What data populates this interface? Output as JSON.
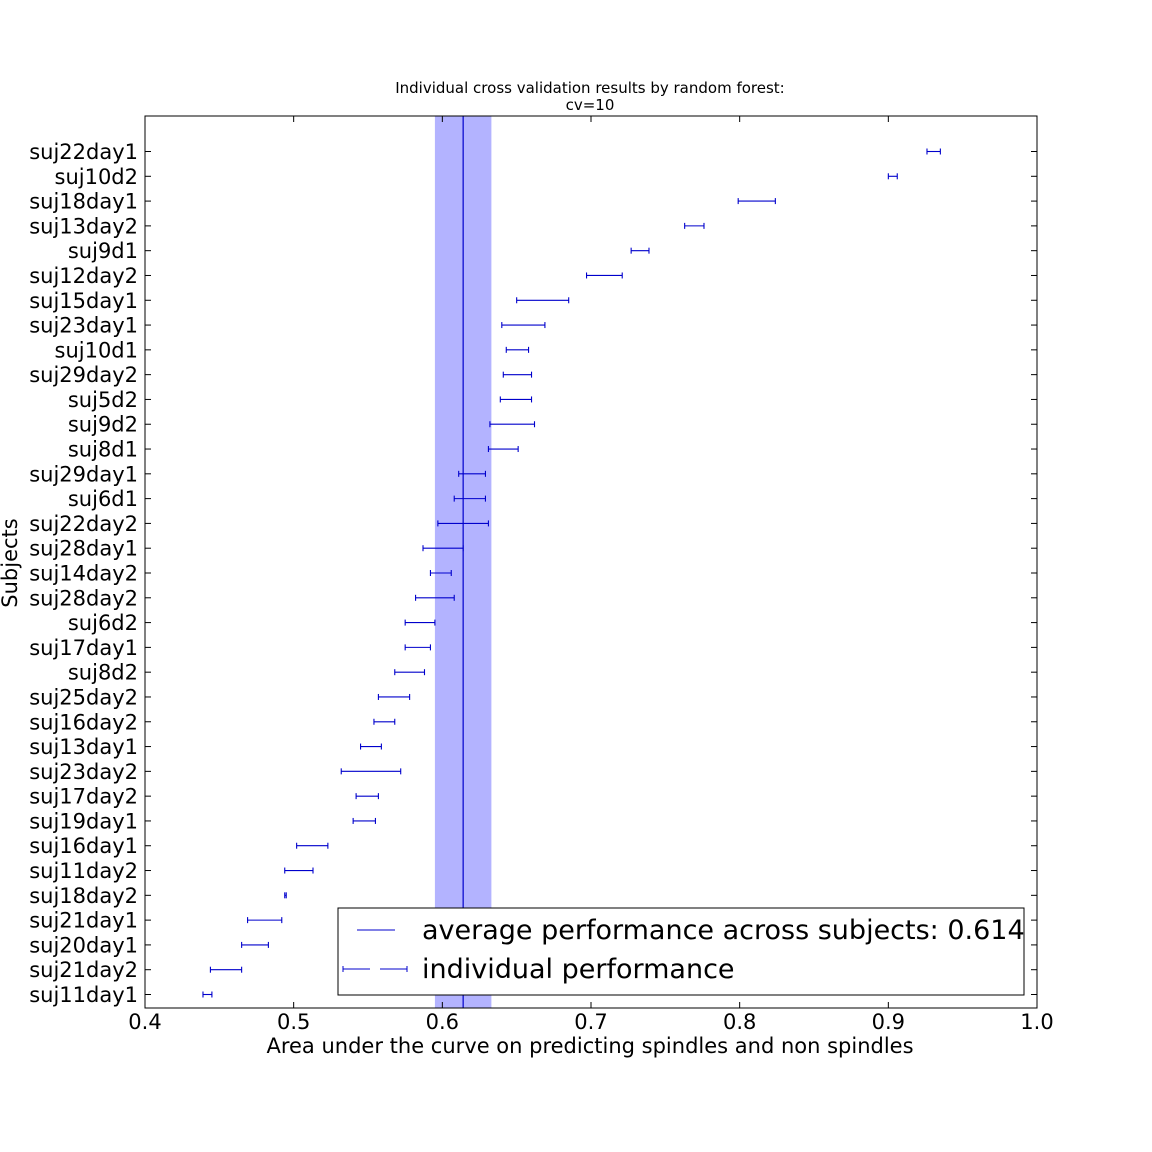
{
  "chart_data": {
    "type": "errorbar",
    "title": "Individual cross validation results by random forest:",
    "subtitle": "cv=10",
    "xlabel": "Area under the curve on predicting spindles and non spindles",
    "ylabel": "Subjects",
    "xlim": [
      0.4,
      1.0
    ],
    "xticks": [
      0.4,
      0.5,
      0.6,
      0.7,
      0.8,
      0.9,
      1.0
    ],
    "xtick_labels": [
      "0.4",
      "0.5",
      "0.6",
      "0.7",
      "0.8",
      "0.9",
      "1.0"
    ],
    "grid": false,
    "legend_position": "lower-right",
    "average": {
      "value": 0.614,
      "band_low": 0.595,
      "band_high": 0.633
    },
    "legend": {
      "average_label": "average performance across subjects: 0.614",
      "individual_label": "individual performance"
    },
    "colors": {
      "line": "#0000cc",
      "band": "#b3b3ff"
    },
    "subjects": [
      {
        "name": "suj22day1",
        "low": 0.926,
        "high": 0.935
      },
      {
        "name": "suj10d2",
        "low": 0.9,
        "high": 0.906
      },
      {
        "name": "suj18day1",
        "low": 0.799,
        "high": 0.824
      },
      {
        "name": "suj13day2",
        "low": 0.763,
        "high": 0.776
      },
      {
        "name": "suj9d1",
        "low": 0.727,
        "high": 0.739
      },
      {
        "name": "suj12day2",
        "low": 0.697,
        "high": 0.721
      },
      {
        "name": "suj15day1",
        "low": 0.65,
        "high": 0.685
      },
      {
        "name": "suj23day1",
        "low": 0.64,
        "high": 0.669
      },
      {
        "name": "suj10d1",
        "low": 0.643,
        "high": 0.658
      },
      {
        "name": "suj29day2",
        "low": 0.641,
        "high": 0.66
      },
      {
        "name": "suj5d2",
        "low": 0.639,
        "high": 0.66
      },
      {
        "name": "suj9d2",
        "low": 0.632,
        "high": 0.662
      },
      {
        "name": "suj8d1",
        "low": 0.631,
        "high": 0.651
      },
      {
        "name": "suj29day1",
        "low": 0.611,
        "high": 0.629
      },
      {
        "name": "suj6d1",
        "low": 0.608,
        "high": 0.629
      },
      {
        "name": "suj22day2",
        "low": 0.597,
        "high": 0.631
      },
      {
        "name": "suj28day1",
        "low": 0.587,
        "high": 0.614
      },
      {
        "name": "suj14day2",
        "low": 0.592,
        "high": 0.606
      },
      {
        "name": "suj28day2",
        "low": 0.582,
        "high": 0.608
      },
      {
        "name": "suj6d2",
        "low": 0.575,
        "high": 0.595
      },
      {
        "name": "suj17day1",
        "low": 0.575,
        "high": 0.592
      },
      {
        "name": "suj8d2",
        "low": 0.568,
        "high": 0.588
      },
      {
        "name": "suj25day2",
        "low": 0.557,
        "high": 0.578
      },
      {
        "name": "suj16day2",
        "low": 0.554,
        "high": 0.568
      },
      {
        "name": "suj13day1",
        "low": 0.545,
        "high": 0.559
      },
      {
        "name": "suj23day2",
        "low": 0.532,
        "high": 0.572
      },
      {
        "name": "suj17day2",
        "low": 0.542,
        "high": 0.557
      },
      {
        "name": "suj19day1",
        "low": 0.54,
        "high": 0.555
      },
      {
        "name": "suj16day1",
        "low": 0.502,
        "high": 0.523
      },
      {
        "name": "suj11day2",
        "low": 0.494,
        "high": 0.513
      },
      {
        "name": "suj18day2",
        "low": 0.494,
        "high": 0.495
      },
      {
        "name": "suj21day1",
        "low": 0.469,
        "high": 0.492
      },
      {
        "name": "suj20day1",
        "low": 0.465,
        "high": 0.483
      },
      {
        "name": "suj21day2",
        "low": 0.444,
        "high": 0.465
      },
      {
        "name": "suj11day1",
        "low": 0.439,
        "high": 0.445
      }
    ]
  }
}
